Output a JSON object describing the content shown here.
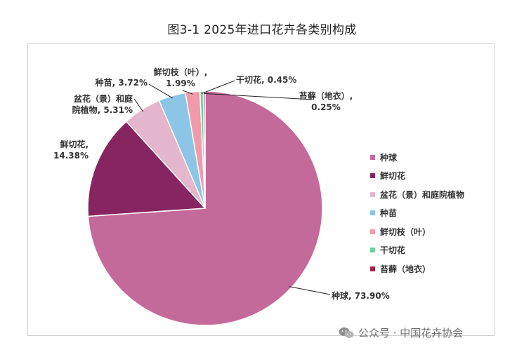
{
  "chart_data": {
    "type": "pie",
    "title": "图3-1  2025年进口花卉各类别构成",
    "legend_position": "right",
    "series": [
      {
        "name": "种球",
        "value": 73.9,
        "label_text": "种球, 73.90%",
        "color": "#c46a9a"
      },
      {
        "name": "鲜切花",
        "value": 14.38,
        "label_text": "鲜切花,\n14.38%",
        "color": "#86255f"
      },
      {
        "name": "盆花（景）和庭院植物",
        "value": 5.31,
        "label_text": "盆花（景）和庭\n院植物, 5.31%",
        "color": "#e4b6cd"
      },
      {
        "name": "种苗",
        "value": 3.72,
        "label_text": "种苗, 3.72%",
        "color": "#8cc5e6"
      },
      {
        "name": "鲜切枝（叶）",
        "value": 1.99,
        "label_text": "鲜切枝（叶）,\n1.99%",
        "color": "#f19aac"
      },
      {
        "name": "干切花",
        "value": 0.45,
        "label_text": "干切花, 0.45%",
        "color": "#6ccf9d"
      },
      {
        "name": "苔藓（地衣）",
        "value": 0.25,
        "label_text": "苔藓（地衣）,\n0.25%",
        "color": "#a3224a"
      }
    ]
  },
  "watermark": {
    "text": "公众号 · 中国花卉协会",
    "icon": "wechat-icon"
  }
}
